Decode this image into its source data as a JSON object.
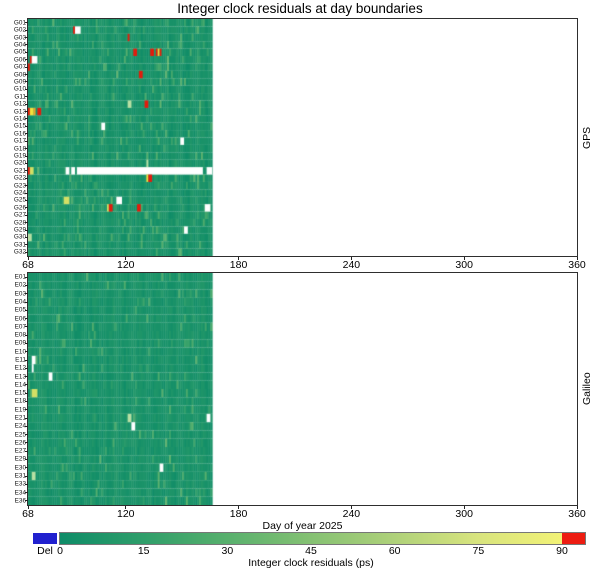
{
  "chart_data": {
    "type": "heatmap",
    "title": "Integer clock residuals at day boundaries",
    "xlabel": "Day of year 2025",
    "x_range": [
      68,
      360
    ],
    "x_ticks": [
      68,
      120,
      180,
      240,
      300,
      360
    ],
    "data_day_start": 68,
    "data_day_end": 166,
    "colorbar": {
      "label": "Integer clock residuals (ps)",
      "ticks": [
        0,
        15,
        30,
        45,
        60,
        75,
        90
      ],
      "range": [
        0,
        90
      ],
      "del_label": "Del",
      "del_color": "#2121cf",
      "over_color": "#ed1c11",
      "gradient_stops": [
        "#0e8c68",
        "#2f9e6a",
        "#58b06d",
        "#85c173",
        "#afd17a",
        "#d8e47e",
        "#f2f276"
      ]
    },
    "anomaly_colors": {
      "red": "#e21b0c",
      "white": "#ffffff",
      "yellow": "#f2e33c",
      "orange": "#f0a228",
      "lightgreen": "#b9e0a4",
      "yellowgreen": "#d4e065"
    },
    "panels": [
      {
        "name": "GPS",
        "rows": [
          "G01",
          "G02",
          "G03",
          "G04",
          "G05",
          "G06",
          "G07",
          "G08",
          "G09",
          "G10",
          "G11",
          "G12",
          "G13",
          "G14",
          "G15",
          "G16",
          "G17",
          "G18",
          "G19",
          "G20",
          "G21",
          "G22",
          "G23",
          "G24",
          "G25",
          "G26",
          "G27",
          "G28",
          "G29",
          "G30",
          "G31",
          "G32"
        ],
        "anomalies": [
          [
            "G02",
            92,
            93,
            "red"
          ],
          [
            "G02",
            93,
            96,
            "white"
          ],
          [
            "G03",
            121,
            122,
            "red"
          ],
          [
            "G05",
            124,
            126,
            "red"
          ],
          [
            "G05",
            133,
            135,
            "red"
          ],
          [
            "G05",
            136,
            137,
            "red"
          ],
          [
            "G05",
            137,
            138,
            "yellow"
          ],
          [
            "G05",
            138,
            139,
            "red"
          ],
          [
            "G06",
            69,
            70,
            "red"
          ],
          [
            "G06",
            70,
            73,
            "white"
          ],
          [
            "G07",
            68,
            69,
            "red"
          ],
          [
            "G08",
            127,
            129,
            "red"
          ],
          [
            "G12",
            121,
            123,
            "lightgreen"
          ],
          [
            "G12",
            130,
            132,
            "red"
          ],
          [
            "G13",
            68,
            69,
            "red"
          ],
          [
            "G13",
            69,
            71,
            "yellow"
          ],
          [
            "G13",
            71,
            72,
            "orange"
          ],
          [
            "G13",
            73,
            75,
            "red"
          ],
          [
            "G15",
            107,
            109,
            "white"
          ],
          [
            "G17",
            149,
            151,
            "white"
          ],
          [
            "G20",
            131,
            132,
            "lightgreen"
          ],
          [
            "G21",
            68,
            69,
            "red"
          ],
          [
            "G21",
            69,
            71,
            "yellowgreen"
          ],
          [
            "G21",
            88,
            90,
            "white"
          ],
          [
            "G21",
            91,
            93,
            "white"
          ],
          [
            "G21",
            94,
            161,
            "white"
          ],
          [
            "G21",
            163,
            166,
            "white"
          ],
          [
            "G22",
            131,
            132,
            "yellow"
          ],
          [
            "G22",
            132,
            134,
            "red"
          ],
          [
            "G25",
            87,
            90,
            "yellowgreen"
          ],
          [
            "G25",
            115,
            118,
            "white"
          ],
          [
            "G26",
            110,
            111,
            "yellowgreen"
          ],
          [
            "G26",
            111,
            113,
            "red"
          ],
          [
            "G26",
            126,
            128,
            "red"
          ],
          [
            "G26",
            162,
            165,
            "white"
          ],
          [
            "G29",
            151,
            153,
            "white"
          ],
          [
            "G30",
            68,
            70,
            "lightgreen"
          ]
        ]
      },
      {
        "name": "Galileo",
        "rows": [
          "E01",
          "E02",
          "E03",
          "E04",
          "E05",
          "E06",
          "E07",
          "E08",
          "E09",
          "E10",
          "E11",
          "E12",
          "E13",
          "E14",
          "E15",
          "E18",
          "E19",
          "E21",
          "E24",
          "E25",
          "E26",
          "E27",
          "E29",
          "E30",
          "E31",
          "E33",
          "E34",
          "E36"
        ],
        "anomalies": [
          [
            "E11",
            70,
            72,
            "white"
          ],
          [
            "E12",
            70,
            71,
            "white"
          ],
          [
            "E13",
            79,
            81,
            "white"
          ],
          [
            "E15",
            70,
            73,
            "yellowgreen"
          ],
          [
            "E21",
            121,
            123,
            "lightgreen"
          ],
          [
            "E21",
            163,
            165,
            "white"
          ],
          [
            "E24",
            123,
            125,
            "white"
          ],
          [
            "E30",
            138,
            140,
            "white"
          ],
          [
            "E31",
            70,
            72,
            "lightgreen"
          ]
        ]
      }
    ]
  }
}
